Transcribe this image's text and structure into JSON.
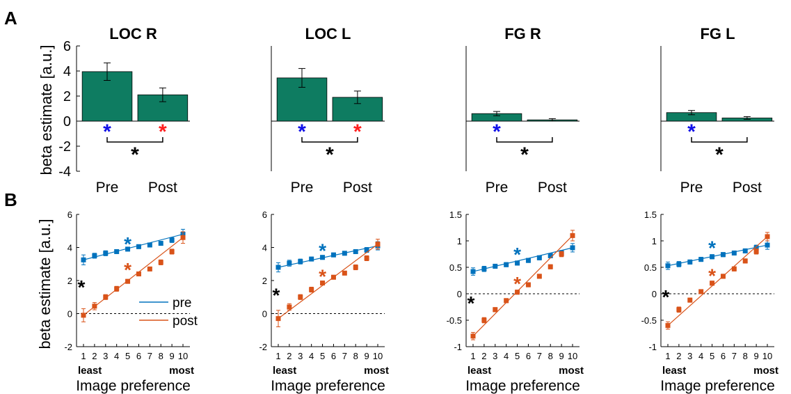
{
  "panel_labels": [
    "A",
    "B"
  ],
  "colors": {
    "bar": "#0e7c61",
    "pre": "#0072bd",
    "post": "#d95319",
    "star_pre": "#1010e8",
    "star_post": "#ff2020",
    "star_diff": "#000000"
  },
  "shared": {
    "a_ylabel": "beta estimate [a.u.]",
    "b_ylabel": "beta estimate [a.u.]",
    "b_xlabel": "Image preference",
    "least": "least",
    "most": "most",
    "star": "*",
    "legend_pre": "pre",
    "legend_post": "post",
    "a_yticks": [
      "6",
      "4",
      "2",
      "0",
      "-2",
      "-4"
    ],
    "b_x_ticks": [
      "1",
      "2",
      "3",
      "4",
      "5",
      "6",
      "7",
      "8",
      "9",
      "10"
    ]
  },
  "chart_data": [
    {
      "type": "bar",
      "title": "LOC R",
      "categories": [
        "Pre",
        "Post"
      ],
      "values": [
        3.95,
        2.1
      ],
      "errors": [
        0.7,
        0.55
      ],
      "ylim": [
        -4,
        6
      ],
      "ylabel": "beta estimate [a.u.]"
    },
    {
      "type": "bar",
      "title": "LOC L",
      "categories": [
        "Pre",
        "Post"
      ],
      "values": [
        3.45,
        1.9
      ],
      "errors": [
        0.75,
        0.5
      ],
      "ylim": [
        -4,
        6
      ]
    },
    {
      "type": "bar",
      "title": "FG R",
      "categories": [
        "Pre",
        "Post"
      ],
      "values": [
        0.6,
        0.1
      ],
      "errors": [
        0.17,
        0.1
      ],
      "ylim": [
        -4,
        6
      ]
    },
    {
      "type": "bar",
      "title": "FG L",
      "categories": [
        "Pre",
        "Post"
      ],
      "values": [
        0.68,
        0.25
      ],
      "errors": [
        0.17,
        0.11
      ],
      "ylim": [
        -4,
        6
      ]
    },
    {
      "type": "line",
      "x": [
        1,
        2,
        3,
        4,
        5,
        6,
        7,
        8,
        9,
        10
      ],
      "ylim": [
        -2,
        6
      ],
      "yticks": [
        "6",
        "4",
        "2",
        "0",
        "-2"
      ],
      "xlabel": "Image preference",
      "ylabel": "beta estimate [a.u.]",
      "series": [
        {
          "name": "pre",
          "values": [
            3.25,
            3.5,
            3.65,
            3.75,
            3.9,
            4.05,
            4.15,
            4.25,
            4.45,
            4.8
          ],
          "errors": [
            0.3,
            0.15,
            0.15,
            0.12,
            0.12,
            0.12,
            0.12,
            0.12,
            0.15,
            0.3
          ]
        },
        {
          "name": "post",
          "values": [
            -0.1,
            0.45,
            1.0,
            1.5,
            1.95,
            2.4,
            2.7,
            3.1,
            3.75,
            4.6
          ],
          "errors": [
            0.4,
            0.22,
            0.15,
            0.15,
            0.12,
            0.12,
            0.12,
            0.15,
            0.15,
            0.35
          ]
        }
      ]
    },
    {
      "type": "line",
      "x": [
        1,
        2,
        3,
        4,
        5,
        6,
        7,
        8,
        9,
        10
      ],
      "ylim": [
        -2,
        6
      ],
      "yticks": [
        "6",
        "4",
        "2",
        "0",
        "-2"
      ],
      "xlabel": "Image preference",
      "series": [
        {
          "values": [
            2.8,
            3.05,
            3.15,
            3.3,
            3.4,
            3.55,
            3.65,
            3.75,
            3.85,
            4.1
          ],
          "errors": [
            0.28,
            0.18,
            0.15,
            0.12,
            0.12,
            0.12,
            0.12,
            0.12,
            0.15,
            0.25
          ]
        },
        {
          "values": [
            -0.3,
            0.4,
            1.0,
            1.45,
            1.85,
            2.2,
            2.45,
            2.8,
            3.35,
            4.2
          ],
          "errors": [
            0.5,
            0.2,
            0.15,
            0.15,
            0.12,
            0.12,
            0.12,
            0.15,
            0.15,
            0.3
          ]
        }
      ]
    },
    {
      "type": "line",
      "x": [
        1,
        2,
        3,
        4,
        5,
        6,
        7,
        8,
        9,
        10
      ],
      "ylim": [
        -1,
        1.5
      ],
      "yticks": [
        "1.5",
        "1",
        "0.5",
        "0",
        "-0.5",
        "-1"
      ],
      "xlabel": "Image preference",
      "series": [
        {
          "values": [
            0.42,
            0.47,
            0.52,
            0.55,
            0.58,
            0.63,
            0.68,
            0.72,
            0.77,
            0.87
          ],
          "errors": [
            0.07,
            0.05,
            0.04,
            0.04,
            0.04,
            0.04,
            0.04,
            0.04,
            0.05,
            0.08
          ]
        },
        {
          "values": [
            -0.8,
            -0.5,
            -0.3,
            -0.13,
            0.03,
            0.17,
            0.33,
            0.51,
            0.75,
            1.1
          ],
          "errors": [
            0.07,
            0.05,
            0.04,
            0.04,
            0.04,
            0.04,
            0.04,
            0.04,
            0.05,
            0.1
          ]
        }
      ]
    },
    {
      "type": "line",
      "x": [
        1,
        2,
        3,
        4,
        5,
        6,
        7,
        8,
        9,
        10
      ],
      "ylim": [
        -1,
        1.5
      ],
      "yticks": [
        "1.5",
        "1",
        "0.5",
        "0",
        "-0.5",
        "-1"
      ],
      "xlabel": "Image preference",
      "series": [
        {
          "values": [
            0.53,
            0.56,
            0.6,
            0.65,
            0.7,
            0.74,
            0.77,
            0.81,
            0.87,
            0.92
          ],
          "errors": [
            0.07,
            0.05,
            0.04,
            0.04,
            0.04,
            0.04,
            0.04,
            0.04,
            0.05,
            0.08
          ]
        },
        {
          "values": [
            -0.6,
            -0.3,
            -0.12,
            0.04,
            0.2,
            0.33,
            0.47,
            0.62,
            0.8,
            1.08
          ],
          "errors": [
            0.07,
            0.05,
            0.04,
            0.04,
            0.04,
            0.04,
            0.04,
            0.04,
            0.05,
            0.08
          ]
        }
      ]
    }
  ]
}
